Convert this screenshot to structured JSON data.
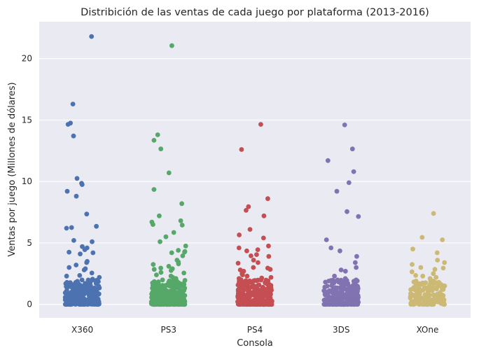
{
  "chart_data": {
    "type": "scatter",
    "title": "Distribición de las ventas de cada juego por plataforma (2013-2016)",
    "xlabel": "Consola",
    "ylabel": "Ventas por juego (Millones de dólares)",
    "ylim": [
      -1.1,
      23.0
    ],
    "yticks": [
      0,
      5,
      10,
      15,
      20
    ],
    "grid": true,
    "categories": [
      "X360",
      "PS3",
      "PS4",
      "3DS",
      "XOne"
    ],
    "colors": [
      "#4c72b0",
      "#55a868",
      "#c44e52",
      "#8172b2",
      "#ccb974"
    ],
    "series": [
      {
        "category": "X360",
        "high_values": [
          21.8,
          16.3,
          14.75,
          14.65,
          13.7,
          10.25,
          9.85,
          9.75,
          9.2,
          8.8,
          7.35,
          6.35,
          6.25,
          6.2,
          5.2,
          5.1,
          4.7,
          4.6,
          4.45,
          4.25,
          4.2,
          4.1,
          3.5,
          3.4,
          3.2,
          3.0,
          2.9,
          2.8,
          2.55,
          2.35,
          2.3,
          2.2,
          2.05
        ],
        "low_count": 260,
        "low_max": 2.0
      },
      {
        "category": "PS3",
        "high_values": [
          21.05,
          13.8,
          13.35,
          12.65,
          10.7,
          9.35,
          8.2,
          7.2,
          6.8,
          6.7,
          6.5,
          6.45,
          5.85,
          5.5,
          5.1,
          4.75,
          4.4,
          4.3,
          4.25,
          4.2,
          3.95,
          3.6,
          3.45,
          3.3,
          3.25,
          3.1,
          2.95,
          2.9,
          2.85,
          2.75,
          2.6,
          2.55,
          2.4,
          2.3,
          2.2,
          2.1
        ],
        "low_count": 330,
        "low_max": 2.0
      },
      {
        "category": "PS4",
        "high_values": [
          14.65,
          12.6,
          8.6,
          7.95,
          7.65,
          7.2,
          6.1,
          5.65,
          5.4,
          4.75,
          4.6,
          4.45,
          4.35,
          4.05,
          3.95,
          3.9,
          3.6,
          3.4,
          3.35,
          3.0,
          2.95,
          2.85,
          2.8,
          2.7,
          2.6,
          2.5,
          2.4,
          2.3,
          2.2,
          2.15,
          2.1
        ],
        "low_count": 300,
        "low_max": 2.0
      },
      {
        "category": "3DS",
        "high_values": [
          14.6,
          12.65,
          11.7,
          10.8,
          9.9,
          9.2,
          7.55,
          7.15,
          5.25,
          4.6,
          4.35,
          3.9,
          3.4,
          3.0,
          2.8,
          2.7,
          2.3,
          2.1
        ],
        "low_count": 290,
        "low_max": 2.0
      },
      {
        "category": "XOne",
        "high_values": [
          7.4,
          5.45,
          5.25,
          4.5,
          4.2,
          3.6,
          3.4,
          3.25,
          3.0,
          2.95,
          2.85,
          2.65,
          2.5,
          2.35,
          2.3,
          2.2,
          2.1
        ],
        "low_count": 170,
        "low_max": 2.0
      }
    ]
  }
}
